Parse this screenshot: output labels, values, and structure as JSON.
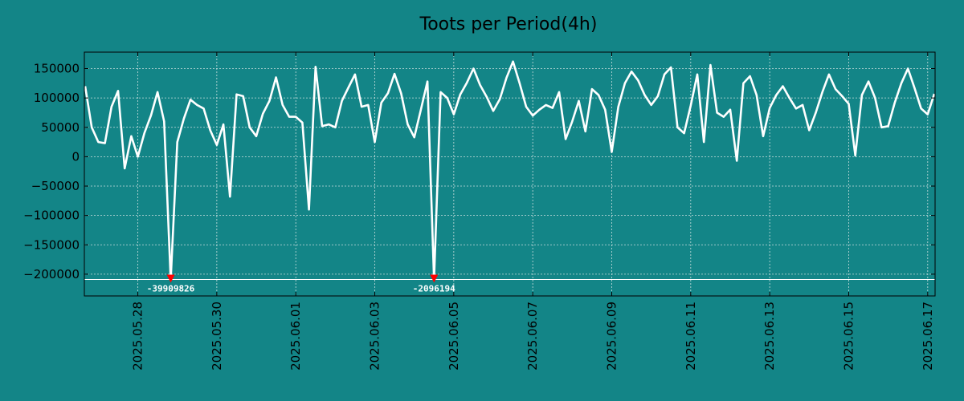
{
  "chart_data": {
    "type": "line",
    "title": "Toots per Period(4h)",
    "xlabel": "",
    "ylabel": "",
    "ylim": [
      -237000,
      178000
    ],
    "grid": true,
    "background_color": "#138587",
    "line_color": "#ffffff",
    "marker_color": "#ff0000",
    "x_start": "2025-05-26T16:00",
    "x_step_hours": 4,
    "x_ticks": [
      "2025.05.28",
      "2025.05.30",
      "2025.06.01",
      "2025.06.03",
      "2025.06.05",
      "2025.06.07",
      "2025.06.09",
      "2025.06.11",
      "2025.06.13",
      "2025.06.15",
      "2025.06.17"
    ],
    "y_ticks": [
      150000,
      100000,
      50000,
      0,
      -50000,
      -100000,
      -150000,
      -200000
    ],
    "y_tick_labels": [
      "150000",
      "100000",
      "50000",
      "0",
      "−50000",
      "−100000",
      "−150000",
      "−200000"
    ],
    "baseline_value": -209000,
    "series": [
      {
        "values": [
          120000,
          50000,
          25000,
          23000,
          85000,
          112000,
          -20000,
          35000,
          0,
          40000,
          70000,
          110000,
          60000,
          -210000,
          25000,
          65000,
          97000,
          88000,
          82000,
          45000,
          20000,
          55000,
          -68000,
          106000,
          103000,
          50000,
          35000,
          73000,
          95000,
          135000,
          88000,
          68000,
          68000,
          58000,
          -90000,
          153000,
          52000,
          55000,
          50000,
          95000,
          118000,
          140000,
          85000,
          88000,
          25000,
          92000,
          108000,
          141000,
          108000,
          55000,
          33000,
          80000,
          128000,
          -210000,
          110000,
          100000,
          72000,
          106000,
          126000,
          150000,
          122000,
          102000,
          78000,
          98000,
          134000,
          162000,
          125000,
          85000,
          70000,
          80000,
          88000,
          83000,
          110000,
          30000,
          60000,
          95000,
          43000,
          115000,
          105000,
          80000,
          8000,
          85000,
          125000,
          145000,
          130000,
          105000,
          88000,
          103000,
          140000,
          152000,
          50000,
          40000,
          87000,
          140000,
          25000,
          156000,
          75000,
          68000,
          80000,
          -7000,
          125000,
          137000,
          105000,
          35000,
          83000,
          105000,
          120000,
          100000,
          82000,
          88000,
          45000,
          75000,
          110000,
          140000,
          115000,
          103000,
          90000,
          2000,
          105000,
          128000,
          100000,
          50000,
          52000,
          92000,
          125000,
          150000,
          117000,
          82000,
          72000,
          107000
        ]
      }
    ],
    "annotations": [
      {
        "label": "-39909826",
        "x_index": 13
      },
      {
        "label": "-2096194",
        "x_index": 53
      }
    ]
  }
}
